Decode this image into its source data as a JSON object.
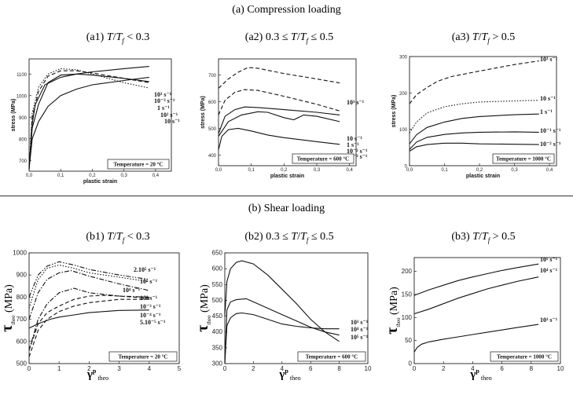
{
  "section_a_title": "(a) Compression loading",
  "section_b_title": "(b) Shear loading",
  "chart_data": [
    {
      "id": "a1",
      "type": "line",
      "title": "(a1) T/T_f < 0.3",
      "xlabel": "plastic strain",
      "ylabel": "stress (MPa)",
      "xlim": [
        0.0,
        0.45
      ],
      "ylim": [
        650,
        1170
      ],
      "xticks": [
        "0,0",
        "0,1",
        "0,2",
        "0,3",
        "0,4"
      ],
      "yticks": [
        "700",
        "800",
        "900",
        "1000",
        "1100"
      ],
      "annotation": "Temperature = 20 °C",
      "series": [
        {
          "name": "10³ s⁻¹",
          "style": "solid",
          "x": [
            0.0,
            0.01,
            0.02,
            0.05,
            0.1,
            0.15,
            0.2,
            0.3,
            0.38
          ],
          "y": [
            660,
            870,
            960,
            1050,
            1085,
            1100,
            1110,
            1125,
            1135
          ]
        },
        {
          "name": "10⁻³ s⁻¹",
          "style": "solid",
          "x": [
            0.0,
            0.01,
            0.03,
            0.06,
            0.1,
            0.15,
            0.2,
            0.3,
            0.38
          ],
          "y": [
            660,
            800,
            880,
            950,
            1000,
            1030,
            1050,
            1070,
            1085
          ]
        },
        {
          "name": "1 s⁻¹",
          "style": "solid",
          "x": [
            0.0,
            0.01,
            0.03,
            0.06,
            0.1,
            0.15,
            0.2,
            0.3,
            0.38
          ],
          "y": [
            660,
            850,
            960,
            1060,
            1095,
            1100,
            1095,
            1080,
            1065
          ]
        },
        {
          "name": "10² s⁻¹",
          "style": "dashed",
          "x": [
            0.0,
            0.01,
            0.03,
            0.06,
            0.1,
            0.15,
            0.2,
            0.3,
            0.38
          ],
          "y": [
            660,
            900,
            1020,
            1090,
            1115,
            1115,
            1105,
            1080,
            1060
          ]
        },
        {
          "name": "10 s⁻¹",
          "style": "dotted",
          "x": [
            0.0,
            0.01,
            0.03,
            0.06,
            0.1,
            0.15,
            0.2,
            0.3,
            0.38
          ],
          "y": [
            660,
            920,
            1040,
            1100,
            1125,
            1120,
            1100,
            1060,
            1035
          ]
        }
      ]
    },
    {
      "id": "a2",
      "type": "line",
      "title": "(a2) 0.3 ≤ T/T_f ≤ 0.5",
      "xlabel": "plastic strain",
      "ylabel": "stress (MPa)",
      "xlim": [
        0.0,
        0.42
      ],
      "ylim": [
        360,
        760
      ],
      "xticks": [
        "0,0",
        "0,1",
        "0,2",
        "0,3",
        "0,4"
      ],
      "yticks": [
        "400",
        "500",
        "600",
        "700"
      ],
      "annotation": "Temperature = 600 °C",
      "series": [
        {
          "name": "10³ s⁻¹",
          "style": "dashed",
          "x": [
            0.0,
            0.03,
            0.06,
            0.09,
            0.12,
            0.2,
            0.3,
            0.37
          ],
          "y": [
            650,
            685,
            710,
            728,
            725,
            705,
            685,
            670
          ]
        },
        {
          "name": "10 s⁻¹",
          "style": "dashed",
          "x": [
            0.0,
            0.02,
            0.05,
            0.08,
            0.12,
            0.2,
            0.3,
            0.37
          ],
          "y": [
            550,
            605,
            635,
            645,
            642,
            620,
            590,
            565
          ]
        },
        {
          "name": "1 s⁻¹",
          "style": "solid",
          "x": [
            0.0,
            0.02,
            0.05,
            0.08,
            0.12,
            0.2,
            0.3,
            0.37
          ],
          "y": [
            480,
            545,
            570,
            580,
            578,
            570,
            560,
            550
          ]
        },
        {
          "name": "10⁻² s⁻¹",
          "style": "solid",
          "x": [
            0.0,
            0.03,
            0.07,
            0.12,
            0.15,
            0.2,
            0.23,
            0.26,
            0.3,
            0.37
          ],
          "y": [
            470,
            525,
            550,
            562,
            560,
            540,
            532,
            550,
            545,
            525
          ]
        },
        {
          "name": "10⁻³ s⁻¹",
          "style": "solid",
          "x": [
            0.0,
            0.01,
            0.03,
            0.06,
            0.1,
            0.15,
            0.2,
            0.3,
            0.37
          ],
          "y": [
            420,
            470,
            495,
            500,
            490,
            475,
            465,
            450,
            440
          ]
        }
      ]
    },
    {
      "id": "a3",
      "type": "line",
      "title": "(a3) T/T_f > 0.5",
      "xlabel": "plastic strain",
      "ylabel": "stress (MPa)",
      "xlim": [
        0.0,
        0.42
      ],
      "ylim": [
        0,
        300
      ],
      "xticks": [
        "0,0",
        "0,1",
        "0,2",
        "0,3",
        "0,4"
      ],
      "yticks": [
        "0",
        "100",
        "200",
        "300"
      ],
      "annotation": "Temperature = 1000 °C",
      "series": [
        {
          "name": "10³ s⁻¹",
          "style": "dashed",
          "x": [
            0.0,
            0.02,
            0.05,
            0.08,
            0.12,
            0.2,
            0.3,
            0.37
          ],
          "y": [
            170,
            195,
            215,
            232,
            245,
            260,
            278,
            288
          ]
        },
        {
          "name": "10 s⁻¹",
          "style": "dotted",
          "x": [
            0.0,
            0.02,
            0.05,
            0.1,
            0.15,
            0.2,
            0.3,
            0.37
          ],
          "y": [
            90,
            120,
            145,
            162,
            170,
            175,
            178,
            180
          ]
        },
        {
          "name": "1 s⁻¹",
          "style": "solid",
          "x": [
            0.0,
            0.02,
            0.05,
            0.1,
            0.15,
            0.2,
            0.3,
            0.37
          ],
          "y": [
            60,
            85,
            105,
            120,
            130,
            135,
            140,
            142
          ]
        },
        {
          "name": "10⁻¹ s⁻¹",
          "style": "solid",
          "x": [
            0.0,
            0.02,
            0.05,
            0.1,
            0.15,
            0.2,
            0.3,
            0.37
          ],
          "y": [
            45,
            65,
            78,
            86,
            90,
            92,
            93,
            92
          ]
        },
        {
          "name": "10⁻² s⁻¹",
          "style": "solid",
          "x": [
            0.0,
            0.02,
            0.05,
            0.1,
            0.15,
            0.2,
            0.3,
            0.37
          ],
          "y": [
            40,
            52,
            58,
            62,
            62,
            60,
            59,
            58
          ]
        }
      ]
    },
    {
      "id": "b1",
      "type": "line",
      "title": "(b1) T/T_f < 0.3",
      "xlabel": "γ^p theo",
      "ylabel": "τ theo (MPa)",
      "xlim": [
        0,
        5
      ],
      "ylim": [
        500,
        1000
      ],
      "xticks": [
        "0",
        "1",
        "2",
        "3",
        "4",
        "5"
      ],
      "yticks": [
        "500",
        "600",
        "700",
        "800",
        "900",
        "1000"
      ],
      "annotation": "Temperature = 20 °C",
      "series": [
        {
          "name": "2.10⁵ s⁻¹",
          "style": "dashdotdot",
          "x": [
            0,
            0.3,
            0.6,
            1.0,
            1.5,
            2,
            3,
            4
          ],
          "y": [
            800,
            900,
            940,
            960,
            945,
            925,
            900,
            880
          ]
        },
        {
          "name": "10⁵ s⁻¹",
          "style": "dotted",
          "x": [
            0,
            0.3,
            0.6,
            1.0,
            1.5,
            2,
            3,
            4
          ],
          "y": [
            750,
            880,
            930,
            945,
            930,
            910,
            890,
            870
          ]
        },
        {
          "name": "10⁴ s⁻¹",
          "style": "dashdot",
          "x": [
            0,
            0.3,
            0.6,
            1.0,
            1.4,
            2,
            3,
            4
          ],
          "y": [
            700,
            820,
            880,
            910,
            920,
            895,
            860,
            830
          ]
        },
        {
          "name": "10³ s⁻¹",
          "style": "dashdot",
          "x": [
            0,
            0.3,
            0.6,
            1.0,
            1.5,
            2,
            3,
            4
          ],
          "y": [
            560,
            700,
            770,
            820,
            840,
            820,
            805,
            800
          ]
        },
        {
          "name": "10⁻³ s⁻¹",
          "style": "dashed",
          "x": [
            0,
            0.3,
            0.6,
            1.0,
            1.5,
            2,
            2.5,
            3,
            4
          ],
          "y": [
            560,
            680,
            730,
            760,
            790,
            805,
            808,
            805,
            795
          ]
        },
        {
          "name": "10⁻⁴ s⁻¹",
          "style": "dashed",
          "x": [
            0,
            0.3,
            0.6,
            1.0,
            1.5,
            2,
            3,
            4
          ],
          "y": [
            530,
            650,
            700,
            735,
            760,
            775,
            790,
            790
          ]
        },
        {
          "name": "5.10⁻⁵ s⁻¹",
          "style": "solid",
          "x": [
            0,
            0.3,
            0.7,
            1.0,
            1.5,
            2,
            3,
            4
          ],
          "y": [
            660,
            680,
            700,
            710,
            720,
            730,
            740,
            742
          ]
        }
      ]
    },
    {
      "id": "b2",
      "type": "line",
      "title": "(b2) 0.3 ≤ T/T_f ≤ 0.5",
      "xlabel": "γ^p theo",
      "ylabel": "τ theo (MPa)",
      "xlim": [
        0,
        10
      ],
      "ylim": [
        300,
        650
      ],
      "xticks": [
        "0",
        "2",
        "4",
        "6",
        "8",
        "10"
      ],
      "yticks": [
        "300",
        "350",
        "400",
        "450",
        "500",
        "550",
        "600",
        "650"
      ],
      "annotation": "Temperature = 600 °C",
      "series": [
        {
          "name": "10³ s⁻¹",
          "style": "solid",
          "x": [
            0,
            0.15,
            0.4,
            0.8,
            1.2,
            2,
            3,
            4,
            5,
            6,
            7,
            8
          ],
          "y": [
            300,
            420,
            445,
            458,
            460,
            455,
            440,
            425,
            418,
            413,
            410,
            410
          ]
        },
        {
          "name": "10⁴ s⁻¹",
          "style": "solid",
          "x": [
            0,
            0.15,
            0.4,
            0.8,
            1.5,
            2,
            3,
            4,
            5,
            6,
            7,
            8
          ],
          "y": [
            300,
            470,
            495,
            502,
            505,
            495,
            475,
            455,
            435,
            415,
            400,
            390
          ]
        },
        {
          "name": "10⁵ s⁻¹",
          "style": "solid",
          "x": [
            0,
            0.15,
            0.4,
            0.8,
            1.2,
            2,
            3,
            4,
            5,
            6,
            7,
            8
          ],
          "y": [
            450,
            560,
            600,
            620,
            625,
            615,
            580,
            535,
            490,
            440,
            400,
            370
          ]
        }
      ]
    },
    {
      "id": "b3",
      "type": "line",
      "title": "(b3) T/T_f > 0.5",
      "xlabel": "γ^p theo",
      "ylabel": "τ theo (MPa)",
      "xlim": [
        0,
        10
      ],
      "ylim": [
        0,
        230
      ],
      "xticks": [
        "0",
        "2",
        "4",
        "6",
        "8",
        "10"
      ],
      "yticks": [
        "0",
        "50",
        "100",
        "150",
        "200"
      ],
      "annotation": "Temperature = 1000 °C",
      "series": [
        {
          "name": "10⁵ s⁻¹",
          "style": "solid",
          "x": [
            0,
            1,
            2,
            3,
            4,
            5,
            6,
            7,
            8.5
          ],
          "y": [
            148,
            160,
            170,
            180,
            188,
            195,
            202,
            208,
            216
          ]
        },
        {
          "name": "10⁴ s⁻¹",
          "style": "solid",
          "x": [
            0,
            1,
            2,
            3,
            4,
            5,
            6,
            7,
            8.5
          ],
          "y": [
            108,
            118,
            130,
            142,
            152,
            162,
            170,
            178,
            188
          ]
        },
        {
          "name": "10³ s⁻¹",
          "style": "solid",
          "x": [
            0,
            0.2,
            0.5,
            1,
            2,
            3,
            4,
            5,
            6,
            7,
            8.5
          ],
          "y": [
            25,
            35,
            42,
            47,
            53,
            58,
            63,
            68,
            73,
            78,
            85
          ]
        }
      ]
    }
  ]
}
